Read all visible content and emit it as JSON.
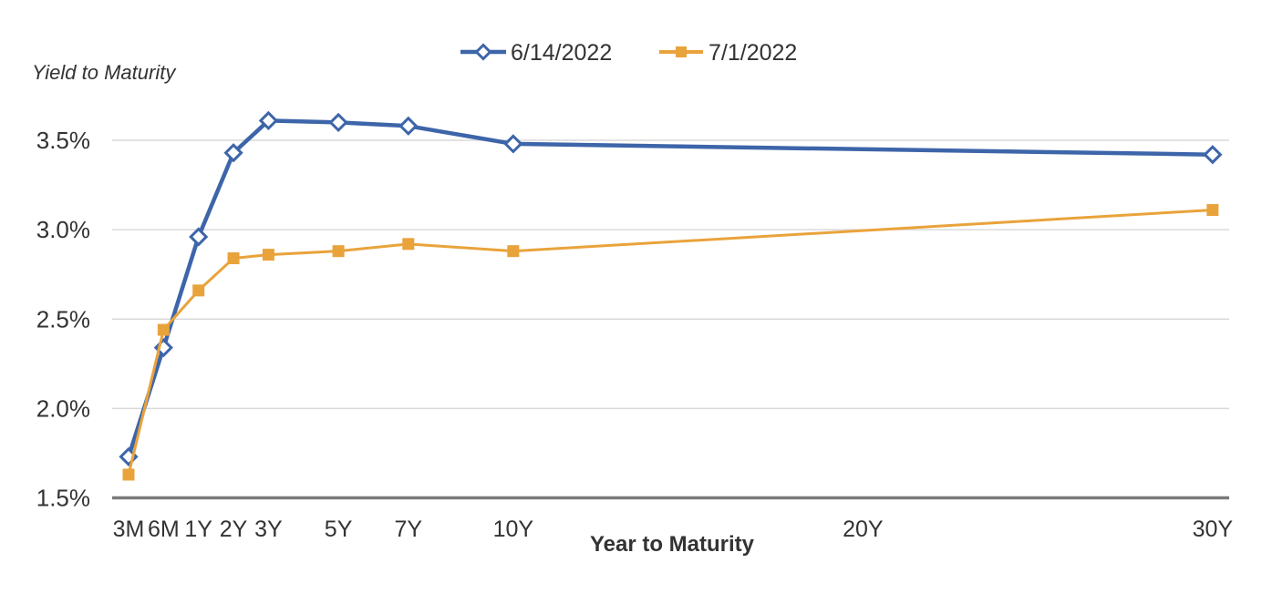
{
  "chart_data": {
    "type": "line",
    "title": "",
    "y_axis_title": "Yield to Maturity",
    "x_axis_title": "Year to Maturity",
    "categories": [
      "3M",
      "6M",
      "1Y",
      "2Y",
      "3Y",
      "5Y",
      "7Y",
      "10Y",
      "30Y"
    ],
    "maturity_years": [
      0.25,
      0.5,
      1,
      2,
      3,
      5,
      7,
      10,
      30
    ],
    "series": [
      {
        "name": "6/14/2022",
        "color": "#3D65A9",
        "marker": "hollow-diamond",
        "values": [
          1.73,
          2.34,
          2.96,
          3.43,
          3.61,
          3.6,
          3.58,
          3.48,
          3.42
        ]
      },
      {
        "name": "7/1/2022",
        "color": "#E9A33B",
        "marker": "filled-square",
        "values": [
          1.63,
          2.44,
          2.66,
          2.84,
          2.86,
          2.88,
          2.92,
          2.88,
          3.11
        ]
      }
    ],
    "y_ticks": [
      {
        "value": 1.5,
        "label": "1.5%"
      },
      {
        "value": 2.0,
        "label": "2.0%"
      },
      {
        "value": 2.5,
        "label": "2.5%"
      },
      {
        "value": 3.0,
        "label": "3.0%"
      },
      {
        "value": 3.5,
        "label": "3.5%"
      }
    ],
    "x_ticks": [
      {
        "label": "3M",
        "pos": 0
      },
      {
        "label": "6M",
        "pos": 1
      },
      {
        "label": "1Y",
        "pos": 2
      },
      {
        "label": "2Y",
        "pos": 3
      },
      {
        "label": "3Y",
        "pos": 4
      },
      {
        "label": "5Y",
        "pos": 6
      },
      {
        "label": "7Y",
        "pos": 8
      },
      {
        "label": "10Y",
        "pos": 11
      },
      {
        "label": "20Y",
        "pos": 21
      },
      {
        "label": "30Y",
        "pos": 31
      }
    ],
    "x_data_pos": [
      0,
      1,
      2,
      3,
      4,
      6,
      8,
      11,
      31
    ],
    "ylim": [
      1.5,
      3.5
    ],
    "grid": "horizontal",
    "legend_position": "top-center",
    "colors": {
      "axis": "#7A7A7A",
      "grid": "#D9D9D9",
      "text": "#333333"
    }
  }
}
